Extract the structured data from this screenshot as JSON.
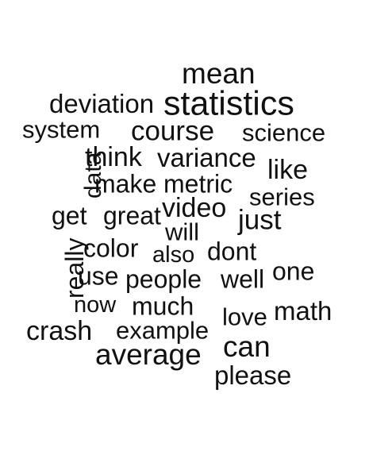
{
  "text_color": "#111111",
  "background_color": "#ffffff",
  "words": [
    {
      "text": "mean"
    },
    {
      "text": "deviation"
    },
    {
      "text": "statistics"
    },
    {
      "text": "system"
    },
    {
      "text": "course"
    },
    {
      "text": "science"
    },
    {
      "text": "think"
    },
    {
      "text": "variance"
    },
    {
      "text": "data",
      "vertical": true
    },
    {
      "text": "like"
    },
    {
      "text": "make"
    },
    {
      "text": "metric"
    },
    {
      "text": "series"
    },
    {
      "text": "get"
    },
    {
      "text": "great"
    },
    {
      "text": "video"
    },
    {
      "text": "just"
    },
    {
      "text": "will"
    },
    {
      "text": "really",
      "vertical": true
    },
    {
      "text": "color"
    },
    {
      "text": "also"
    },
    {
      "text": "dont"
    },
    {
      "text": "use"
    },
    {
      "text": "people"
    },
    {
      "text": "well"
    },
    {
      "text": "one"
    },
    {
      "text": "now"
    },
    {
      "text": "much"
    },
    {
      "text": "math"
    },
    {
      "text": "love"
    },
    {
      "text": "crash"
    },
    {
      "text": "example"
    },
    {
      "text": "can"
    },
    {
      "text": "average"
    },
    {
      "text": "please"
    }
  ]
}
